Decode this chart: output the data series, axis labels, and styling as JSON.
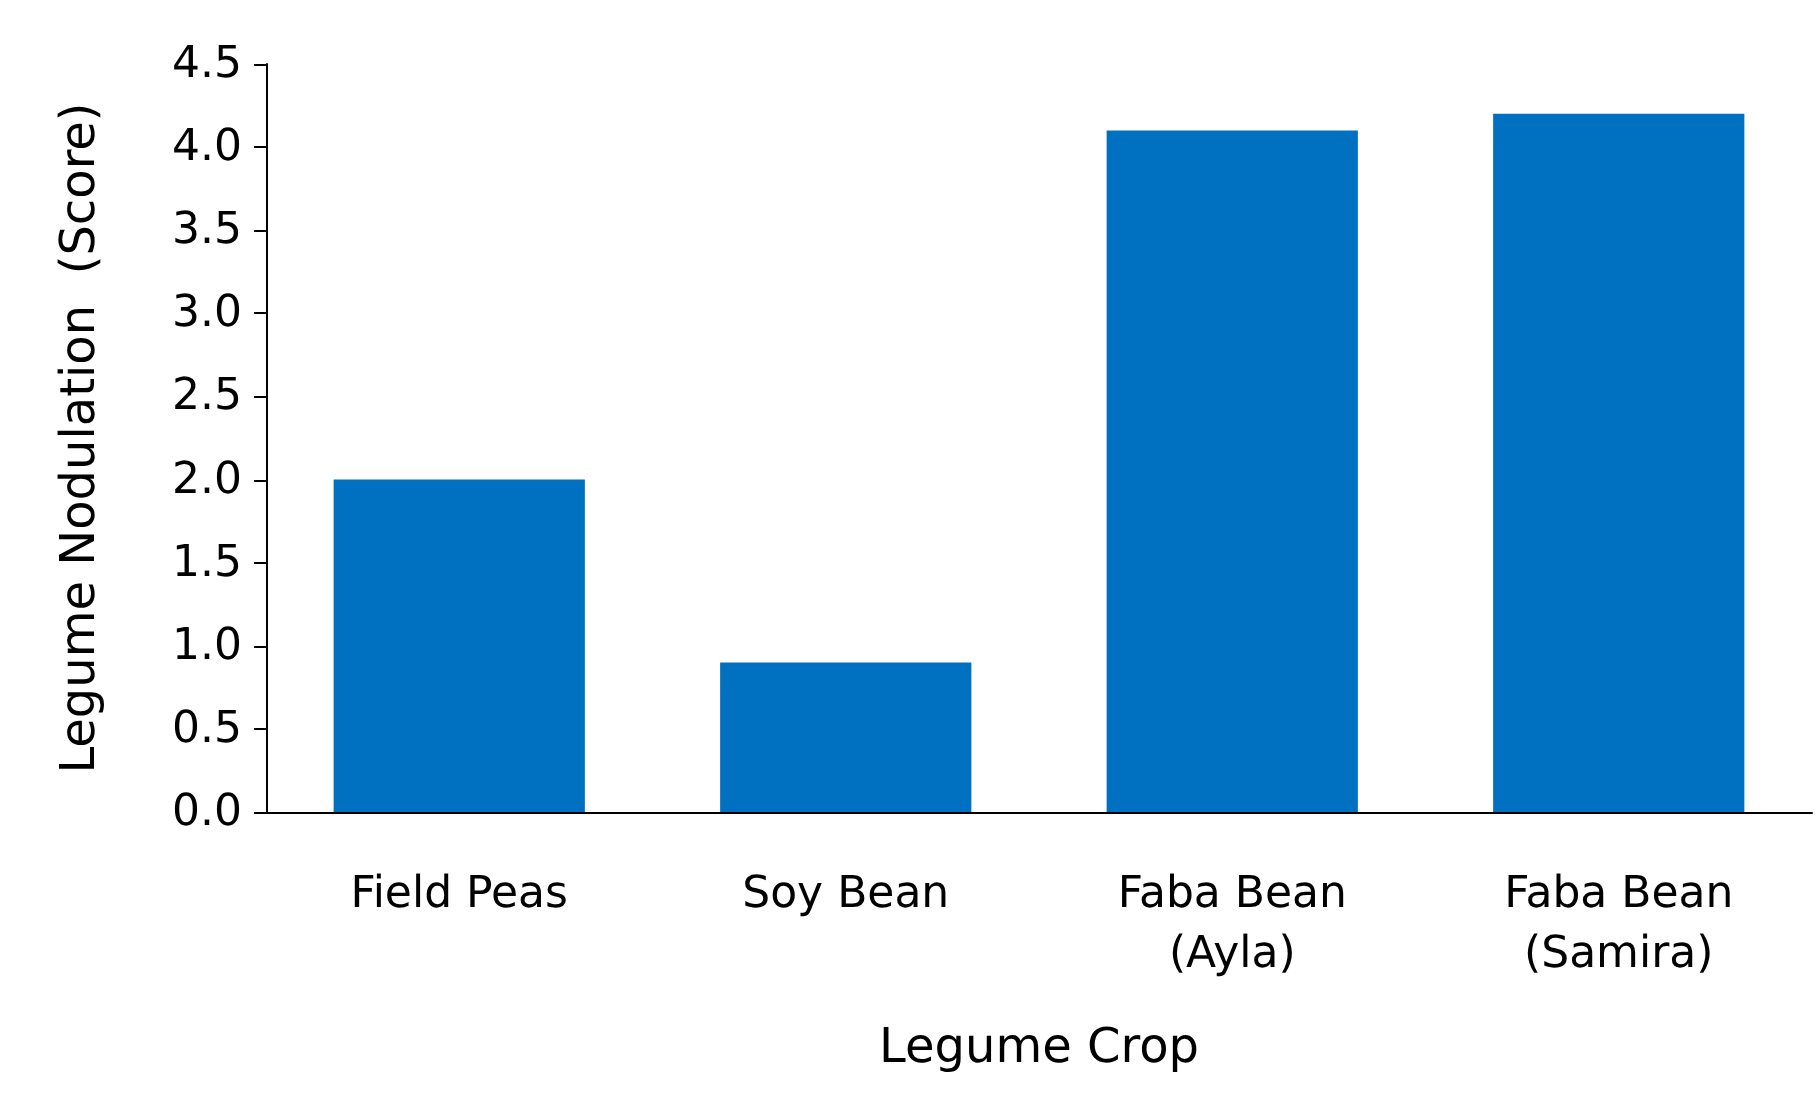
{
  "chart_data": {
    "type": "bar",
    "xlabel": "Legume Crop",
    "ylabel": "Legume Nodulation  (Score)",
    "categories": [
      "Field Peas",
      "Soy Bean",
      "Faba Bean\n(Ayla)",
      "Faba Bean\n(Samira)"
    ],
    "values": [
      2.0,
      0.9,
      4.1,
      4.2
    ],
    "color": "#0070c0",
    "ylim": [
      0,
      4.5
    ],
    "yticks": [
      {
        "value": 0,
        "label": "0.0"
      },
      {
        "value": 0.5,
        "label": "0.5"
      },
      {
        "value": 1,
        "label": "1.0"
      },
      {
        "value": 1.5,
        "label": "1.5"
      },
      {
        "value": 2,
        "label": "2.0"
      },
      {
        "value": 2.5,
        "label": "2.5"
      },
      {
        "value": 3,
        "label": "3.0"
      },
      {
        "value": 3.5,
        "label": "3.5"
      },
      {
        "value": 4,
        "label": "4.0"
      },
      {
        "value": 4.5,
        "label": "4.5"
      }
    ],
    "grid": false
  }
}
